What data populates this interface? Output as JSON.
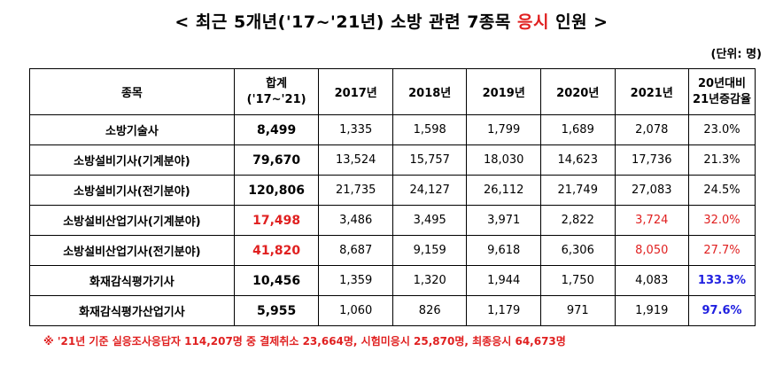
{
  "title": {
    "prefix": "< 최근 5개년('17~'21년) 소방 관련 7종목 ",
    "highlight": "응시",
    "suffix": " 인원 >"
  },
  "unit": "(단위: 명)",
  "table": {
    "headers": {
      "item": "종목",
      "total_line1": "합계",
      "total_line2": "('17~'21)",
      "y2017": "2017년",
      "y2018": "2018년",
      "y2019": "2019년",
      "y2020": "2020년",
      "y2021": "2021년",
      "change_line1": "20년대비",
      "change_line2": "21년증감율"
    },
    "rows": [
      {
        "name": "소방기술사",
        "total": "8,499",
        "y2017": "1,335",
        "y2018": "1,598",
        "y2019": "1,799",
        "y2020": "1,689",
        "y2021": "2,078",
        "change": "23.0%"
      },
      {
        "name": "소방설비기사(기계분야)",
        "total": "79,670",
        "y2017": "13,524",
        "y2018": "15,757",
        "y2019": "18,030",
        "y2020": "14,623",
        "y2021": "17,736",
        "change": "21.3%"
      },
      {
        "name": "소방설비기사(전기분야)",
        "total": "120,806",
        "y2017": "21,735",
        "y2018": "24,127",
        "y2019": "26,112",
        "y2020": "21,749",
        "y2021": "27,083",
        "change": "24.5%"
      },
      {
        "name": "소방설비산업기사(기계분야)",
        "total": "17,498",
        "y2017": "3,486",
        "y2018": "3,495",
        "y2019": "3,971",
        "y2020": "2,822",
        "y2021": "3,724",
        "change": "32.0%"
      },
      {
        "name": "소방설비산업기사(전기분야)",
        "total": "41,820",
        "y2017": "8,687",
        "y2018": "9,159",
        "y2019": "9,618",
        "y2020": "6,306",
        "y2021": "8,050",
        "change": "27.7%"
      },
      {
        "name": "화재감식평가기사",
        "total": "10,456",
        "y2017": "1,359",
        "y2018": "1,320",
        "y2019": "1,944",
        "y2020": "1,750",
        "y2021": "4,083",
        "change": "133.3%"
      },
      {
        "name": "화재감식평가산업기사",
        "total": "5,955",
        "y2017": "1,060",
        "y2018": "826",
        "y2019": "1,179",
        "y2020": "971",
        "y2021": "1,919",
        "change": "97.6%"
      }
    ]
  },
  "colors": {
    "highlight_red": "#e02020",
    "highlight_blue": "#2020e0"
  },
  "note": "※ '21년 기준 실응조사응답자 114,207명 중 결제취소 23,664명, 시험미응시 25,870명, 최종응시 64,673명"
}
